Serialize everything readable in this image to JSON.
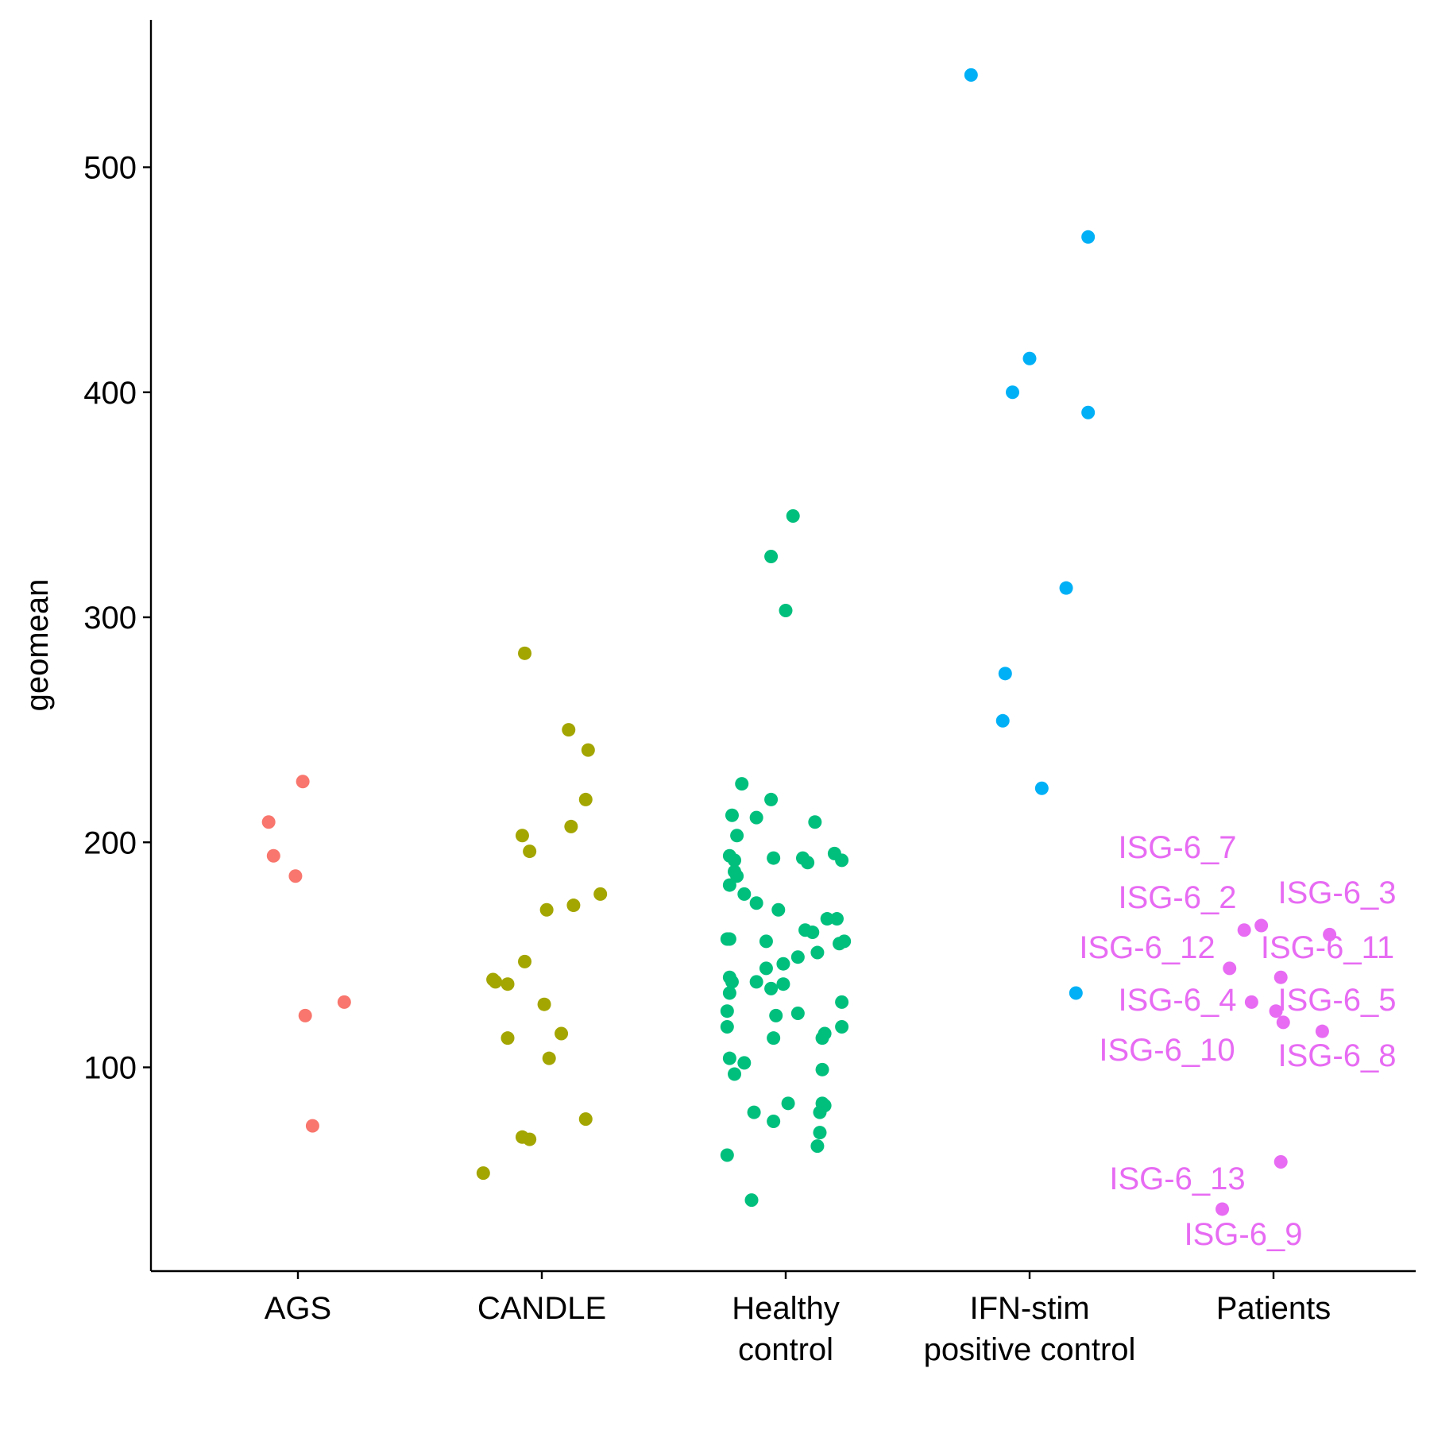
{
  "chart_data": {
    "type": "scatter",
    "title": "",
    "xlabel": "",
    "ylabel": "geomean",
    "ylim": [
      28,
      555
    ],
    "yticks": [
      100,
      200,
      300,
      400,
      500
    ],
    "grid": false,
    "legend": "none",
    "categories": [
      "AGS",
      "CANDLE",
      "Healthy\ncontrol",
      "IFN-stim\npositive control",
      "Patients"
    ],
    "series": [
      {
        "category": "AGS",
        "color": "#F8766D",
        "points": [
          {
            "x": 0.02,
            "y": 227
          },
          {
            "x": -0.12,
            "y": 209
          },
          {
            "x": -0.1,
            "y": 194
          },
          {
            "x": -0.01,
            "y": 185
          },
          {
            "x": 0.19,
            "y": 129
          },
          {
            "x": 0.03,
            "y": 123
          },
          {
            "x": 0.06,
            "y": 74
          }
        ]
      },
      {
        "category": "CANDLE",
        "color": "#A3A500",
        "points": [
          {
            "x": -0.07,
            "y": 284
          },
          {
            "x": 0.11,
            "y": 250
          },
          {
            "x": 0.19,
            "y": 241
          },
          {
            "x": 0.18,
            "y": 219
          },
          {
            "x": 0.12,
            "y": 207
          },
          {
            "x": -0.08,
            "y": 203
          },
          {
            "x": -0.05,
            "y": 196
          },
          {
            "x": 0.24,
            "y": 177
          },
          {
            "x": 0.13,
            "y": 172
          },
          {
            "x": 0.02,
            "y": 170
          },
          {
            "x": -0.07,
            "y": 147
          },
          {
            "x": -0.2,
            "y": 139
          },
          {
            "x": -0.19,
            "y": 138
          },
          {
            "x": -0.14,
            "y": 137
          },
          {
            "x": 0.01,
            "y": 128
          },
          {
            "x": 0.08,
            "y": 115
          },
          {
            "x": -0.14,
            "y": 113
          },
          {
            "x": 0.03,
            "y": 104
          },
          {
            "x": 0.18,
            "y": 77
          },
          {
            "x": -0.08,
            "y": 69
          },
          {
            "x": -0.05,
            "y": 68
          },
          {
            "x": -0.24,
            "y": 53
          }
        ]
      },
      {
        "category": "Healthy control",
        "color": "#00BF7D",
        "points": [
          {
            "x": 0.03,
            "y": 345
          },
          {
            "x": -0.06,
            "y": 327
          },
          {
            "x": 0.0,
            "y": 303
          },
          {
            "x": -0.18,
            "y": 226
          },
          {
            "x": -0.06,
            "y": 219
          },
          {
            "x": -0.22,
            "y": 212
          },
          {
            "x": -0.12,
            "y": 211
          },
          {
            "x": 0.12,
            "y": 209
          },
          {
            "x": -0.2,
            "y": 203
          },
          {
            "x": -0.23,
            "y": 194
          },
          {
            "x": -0.21,
            "y": 192
          },
          {
            "x": -0.05,
            "y": 193
          },
          {
            "x": 0.07,
            "y": 193
          },
          {
            "x": 0.09,
            "y": 191
          },
          {
            "x": 0.2,
            "y": 195
          },
          {
            "x": 0.23,
            "y": 192
          },
          {
            "x": -0.21,
            "y": 187
          },
          {
            "x": -0.2,
            "y": 185
          },
          {
            "x": -0.23,
            "y": 181
          },
          {
            "x": -0.17,
            "y": 177
          },
          {
            "x": -0.12,
            "y": 173
          },
          {
            "x": -0.03,
            "y": 170
          },
          {
            "x": 0.17,
            "y": 166
          },
          {
            "x": 0.21,
            "y": 166
          },
          {
            "x": 0.08,
            "y": 161
          },
          {
            "x": 0.11,
            "y": 160
          },
          {
            "x": -0.24,
            "y": 157
          },
          {
            "x": -0.23,
            "y": 157
          },
          {
            "x": -0.08,
            "y": 156
          },
          {
            "x": 0.22,
            "y": 155
          },
          {
            "x": 0.24,
            "y": 156
          },
          {
            "x": 0.13,
            "y": 151
          },
          {
            "x": 0.05,
            "y": 149
          },
          {
            "x": -0.01,
            "y": 146
          },
          {
            "x": -0.08,
            "y": 144
          },
          {
            "x": -0.23,
            "y": 140
          },
          {
            "x": -0.22,
            "y": 138
          },
          {
            "x": -0.12,
            "y": 138
          },
          {
            "x": -0.01,
            "y": 137
          },
          {
            "x": -0.06,
            "y": 135
          },
          {
            "x": -0.23,
            "y": 133
          },
          {
            "x": 0.23,
            "y": 129
          },
          {
            "x": -0.24,
            "y": 125
          },
          {
            "x": -0.04,
            "y": 123
          },
          {
            "x": 0.05,
            "y": 124
          },
          {
            "x": -0.24,
            "y": 118
          },
          {
            "x": 0.23,
            "y": 118
          },
          {
            "x": 0.16,
            "y": 115
          },
          {
            "x": -0.05,
            "y": 113
          },
          {
            "x": 0.15,
            "y": 113
          },
          {
            "x": -0.23,
            "y": 104
          },
          {
            "x": -0.17,
            "y": 102
          },
          {
            "x": 0.15,
            "y": 99
          },
          {
            "x": -0.21,
            "y": 97
          },
          {
            "x": 0.01,
            "y": 84
          },
          {
            "x": 0.15,
            "y": 84
          },
          {
            "x": 0.16,
            "y": 83
          },
          {
            "x": -0.13,
            "y": 80
          },
          {
            "x": 0.14,
            "y": 80
          },
          {
            "x": -0.05,
            "y": 76
          },
          {
            "x": 0.14,
            "y": 71
          },
          {
            "x": 0.13,
            "y": 65
          },
          {
            "x": -0.24,
            "y": 61
          },
          {
            "x": -0.14,
            "y": 41
          }
        ]
      },
      {
        "category": "IFN-stim positive control",
        "color": "#00B0F6",
        "points": [
          {
            "x": -0.24,
            "y": 541
          },
          {
            "x": 0.24,
            "y": 469
          },
          {
            "x": 0.0,
            "y": 415
          },
          {
            "x": -0.07,
            "y": 400
          },
          {
            "x": 0.24,
            "y": 391
          },
          {
            "x": 0.15,
            "y": 313
          },
          {
            "x": -0.1,
            "y": 275
          },
          {
            "x": -0.11,
            "y": 254
          },
          {
            "x": 0.05,
            "y": 224
          },
          {
            "x": 0.19,
            "y": 133
          }
        ]
      },
      {
        "category": "Patients",
        "color": "#E76BF3",
        "points": [
          {
            "label": "ISG-6_7",
            "x": -0.12,
            "y": 161
          },
          {
            "label": "ISG-6_2",
            "x": -0.05,
            "y": 163
          },
          {
            "label": "ISG-6_3",
            "x": 0.23,
            "y": 159
          },
          {
            "label": "ISG-6_12",
            "x": -0.18,
            "y": 144
          },
          {
            "label": "ISG-6_11",
            "x": 0.03,
            "y": 140
          },
          {
            "label": "ISG-6_4",
            "x": -0.09,
            "y": 129
          },
          {
            "label": "ISG-6_5",
            "x": 0.01,
            "y": 125
          },
          {
            "label": "ISG-6_10",
            "x": 0.04,
            "y": 120
          },
          {
            "label": "ISG-6_8",
            "x": 0.2,
            "y": 116
          },
          {
            "label": "ISG-6_13",
            "x": 0.03,
            "y": 58
          },
          {
            "label": "ISG-6_9",
            "x": -0.21,
            "y": 37
          }
        ]
      }
    ]
  }
}
